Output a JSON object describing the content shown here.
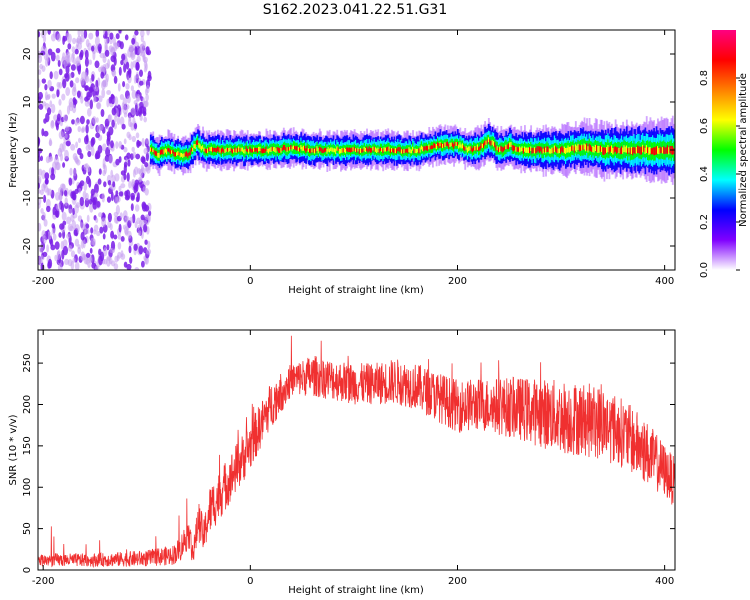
{
  "title": "S162.2023.041.22.51.G31",
  "chart_data": [
    {
      "type": "heatmap",
      "name": "spectrogram",
      "xlabel": "Height of straight line (km)",
      "ylabel": "Frequency (Hz)",
      "xlim": [
        -205,
        410
      ],
      "ylim": [
        -25,
        25
      ],
      "xticks": [
        -200,
        0,
        200,
        400
      ],
      "yticks": [
        -20,
        -10,
        0,
        10,
        20
      ],
      "noise_region_x": [
        -205,
        -97
      ],
      "trace": {
        "x": [
          -97,
          -90,
          -80,
          -70,
          -60,
          -52,
          -45,
          -35,
          -20,
          0,
          20,
          40,
          60,
          80,
          100,
          120,
          140,
          160,
          180,
          200,
          210,
          220,
          230,
          240,
          250,
          260,
          280,
          300,
          320,
          340,
          360,
          380,
          400,
          410
        ],
        "freq": [
          0,
          -1,
          0,
          -1,
          -1,
          1.5,
          0,
          0,
          0,
          0,
          0,
          0.5,
          0,
          0,
          0,
          0,
          0,
          0,
          1,
          1,
          0,
          0.5,
          2,
          0,
          1,
          0,
          0,
          0,
          0.5,
          0,
          0,
          0,
          0,
          0
        ]
      },
      "colorbar": {
        "label": "Normalized spectral amplitude",
        "range": [
          0,
          1
        ],
        "ticks": [
          0.0,
          0.2,
          0.4,
          0.6,
          0.8
        ],
        "colors": [
          "#ffffff",
          "#8000ff",
          "#0000ff",
          "#00ffff",
          "#00ff00",
          "#ffff00",
          "#ff8000",
          "#ff0000",
          "#ff0080"
        ]
      }
    },
    {
      "type": "line",
      "name": "snr",
      "xlabel": "Height of straight line (km)",
      "ylabel": "SNR (10 * v/v)",
      "xlim": [
        -205,
        410
      ],
      "ylim": [
        0,
        290
      ],
      "xticks": [
        -200,
        0,
        200,
        400
      ],
      "yticks": [
        0,
        50,
        100,
        150,
        200,
        250
      ],
      "color": "#f03030",
      "envelope": {
        "x": [
          -205,
          -150,
          -100,
          -75,
          -68,
          -60,
          -55,
          -50,
          -45,
          -40,
          -30,
          -20,
          -10,
          0,
          10,
          20,
          30,
          40,
          60,
          80,
          100,
          120,
          140,
          160,
          180,
          200,
          220,
          240,
          260,
          280,
          300,
          320,
          340,
          360,
          380,
          400,
          410
        ],
        "mean": [
          12,
          12,
          14,
          18,
          25,
          45,
          20,
          60,
          40,
          70,
          90,
          110,
          130,
          150,
          175,
          200,
          215,
          230,
          235,
          230,
          225,
          225,
          228,
          222,
          210,
          198,
          200,
          198,
          195,
          190,
          185,
          182,
          178,
          165,
          145,
          120,
          105
        ],
        "spread": [
          8,
          8,
          10,
          12,
          15,
          20,
          15,
          25,
          20,
          30,
          30,
          30,
          30,
          30,
          28,
          28,
          25,
          20,
          25,
          25,
          25,
          25,
          28,
          28,
          30,
          32,
          32,
          35,
          38,
          42,
          45,
          45,
          45,
          42,
          40,
          32,
          30
        ]
      }
    }
  ]
}
